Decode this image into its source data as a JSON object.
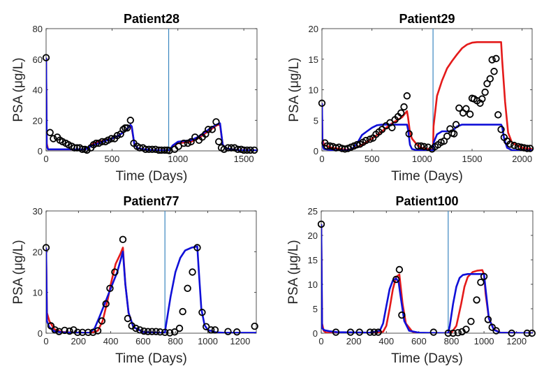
{
  "colors": {
    "model_red": "#e41a1a",
    "model_blue": "#1010d8",
    "marker": "#000000",
    "vline": "#3a86c0",
    "axis": "#262626"
  },
  "chart_data": [
    {
      "type": "line",
      "title": "Patient28",
      "xlabel": "Time (Days)",
      "ylabel": "PSA (μg/L)",
      "xlim": [
        0,
        1600
      ],
      "ylim": [
        0,
        80
      ],
      "xticks": [
        0,
        500,
        1000,
        1500
      ],
      "yticks": [
        0,
        20,
        40,
        60,
        80
      ],
      "vline_x": 930,
      "observed": {
        "x": [
          0,
          30,
          55,
          85,
          105,
          125,
          150,
          170,
          195,
          215,
          235,
          255,
          275,
          295,
          310,
          340,
          360,
          380,
          400,
          425,
          450,
          470,
          495,
          520,
          540,
          565,
          585,
          600,
          615,
          640,
          665,
          690,
          710,
          735,
          755,
          780,
          805,
          830,
          855,
          875,
          900,
          920,
          935,
          975,
          1005,
          1045,
          1075,
          1100,
          1130,
          1160,
          1185,
          1210,
          1230,
          1260,
          1290,
          1310,
          1330,
          1350,
          1380,
          1405,
          1430,
          1455,
          1480,
          1500,
          1525,
          1550,
          1580
        ],
        "y": [
          61,
          12,
          8,
          9,
          7,
          6,
          5,
          4,
          3,
          2,
          2,
          2,
          1,
          1,
          0.5,
          2,
          4,
          5,
          5,
          6,
          6,
          7,
          8,
          8,
          10,
          11,
          14,
          15,
          15,
          20,
          5,
          3,
          2,
          2,
          1,
          1,
          1,
          1,
          0.5,
          0.5,
          0.5,
          0.5,
          0.2,
          1,
          3,
          5,
          5,
          6,
          9,
          7,
          9,
          11,
          14,
          14,
          19,
          6,
          2,
          1,
          2,
          2,
          2,
          1,
          1,
          0.5,
          0.5,
          0.5,
          0.5
        ]
      },
      "series": [
        {
          "name": "model-red",
          "x": [
            0,
            5,
            15,
            300,
            330,
            360,
            400,
            450,
            500,
            550,
            600,
            640,
            650,
            670,
            700,
            800,
            930,
            935,
            960,
            1000,
            1050,
            1100,
            1150,
            1200,
            1250,
            1300,
            1320,
            1340,
            1370,
            1450,
            1600
          ],
          "y": [
            61,
            5,
            1,
            1,
            3,
            5,
            6,
            7,
            8,
            10,
            13,
            17,
            15,
            4,
            1.5,
            0.5,
            0.3,
            0.3,
            3,
            5,
            5.5,
            6,
            8,
            11,
            14,
            17,
            17,
            4,
            1.5,
            0.5,
            0.3
          ]
        },
        {
          "name": "model-blue",
          "x": [
            0,
            5,
            15,
            300,
            330,
            360,
            400,
            450,
            500,
            550,
            600,
            640,
            650,
            670,
            700,
            800,
            930,
            935,
            960,
            1000,
            1050,
            1100,
            1150,
            1200,
            1250,
            1300,
            1320,
            1340,
            1370,
            1450,
            1600
          ],
          "y": [
            61,
            3,
            1,
            1,
            2.5,
            4,
            5,
            6.5,
            8,
            10,
            13,
            17,
            16,
            4,
            1.5,
            0.5,
            0.3,
            0.3,
            3.5,
            6,
            6.5,
            7,
            9,
            12,
            15,
            17.5,
            18,
            4,
            1.5,
            0.5,
            0.3
          ]
        }
      ]
    },
    {
      "type": "line",
      "title": "Patient29",
      "xlabel": "Time (Days)",
      "ylabel": "PSA (μg/L)",
      "xlim": [
        0,
        2100
      ],
      "ylim": [
        0,
        20
      ],
      "xticks": [
        0,
        500,
        1000,
        1500,
        2000
      ],
      "yticks": [
        0,
        5,
        10,
        15,
        20
      ],
      "vline_x": 1110,
      "observed": {
        "x": [
          0,
          30,
          50,
          80,
          110,
          140,
          170,
          200,
          230,
          260,
          290,
          320,
          350,
          380,
          410,
          440,
          480,
          510,
          540,
          570,
          600,
          640,
          680,
          700,
          730,
          760,
          790,
          820,
          850,
          870,
          960,
          990,
          1020,
          1060,
          1100,
          1130,
          1160,
          1190,
          1220,
          1250,
          1280,
          1300,
          1320,
          1340,
          1370,
          1410,
          1440,
          1480,
          1500,
          1520,
          1550,
          1580,
          1600,
          1630,
          1650,
          1680,
          1700,
          1720,
          1740,
          1760,
          1790,
          1820,
          1850,
          1880,
          1920,
          1960,
          1990,
          2020,
          2050,
          2080
        ],
        "y": [
          7.8,
          1.3,
          0.8,
          0.8,
          0.7,
          0.5,
          0.6,
          0.4,
          0.3,
          0.4,
          0.6,
          0.8,
          1.0,
          1.1,
          1.4,
          1.7,
          1.9,
          2.1,
          2.7,
          3.1,
          3.5,
          4.1,
          4.6,
          3.8,
          5.1,
          5.6,
          6.2,
          7.2,
          9.0,
          2.8,
          0.8,
          0.8,
          0.7,
          0.6,
          0.3,
          0.7,
          1.0,
          1.4,
          1.6,
          2.4,
          3.6,
          2.9,
          2.8,
          4.3,
          7.0,
          6.2,
          6.9,
          6.0,
          8.6,
          8.5,
          8.2,
          7.8,
          8.5,
          9.6,
          11.0,
          11.8,
          14.9,
          13.0,
          15.1,
          5.9,
          3.5,
          2.2,
          1.6,
          1.1,
          0.9,
          0.7,
          0.6,
          0.5,
          0.4,
          0.4
        ]
      },
      "series": [
        {
          "name": "model-red",
          "x": [
            0,
            5,
            20,
            100,
            250,
            300,
            350,
            400,
            450,
            500,
            550,
            600,
            650,
            700,
            750,
            800,
            850,
            860,
            880,
            900,
            950,
            1000,
            1100,
            1110,
            1115,
            1150,
            1200,
            1250,
            1300,
            1350,
            1400,
            1450,
            1500,
            1550,
            1600,
            1700,
            1790,
            1800,
            1830,
            1860,
            1900,
            2000,
            2100
          ],
          "y": [
            7.8,
            2,
            1,
            0.5,
            0.2,
            0.3,
            0.6,
            1.0,
            1.5,
            2.0,
            2.6,
            3.2,
            3.9,
            4.5,
            5.0,
            5.5,
            6.5,
            5.5,
            3,
            2,
            1,
            0.5,
            0.2,
            0.2,
            4,
            9,
            11.5,
            13.5,
            14.7,
            15.8,
            16.8,
            17.4,
            17.7,
            17.8,
            17.8,
            17.8,
            17.8,
            15,
            8,
            3,
            1.3,
            0.5,
            0.3
          ]
        },
        {
          "name": "model-blue",
          "x": [
            0,
            5,
            20,
            100,
            250,
            300,
            350,
            400,
            450,
            500,
            550,
            600,
            650,
            700,
            750,
            800,
            850,
            860,
            880,
            900,
            950,
            1000,
            1100,
            1110,
            1120,
            1150,
            1200,
            1300,
            1350,
            1400,
            1500,
            1600,
            1700,
            1790,
            1800,
            1820,
            1850,
            1900,
            2000,
            2100
          ],
          "y": [
            7.8,
            1,
            0.3,
            0.1,
            0.1,
            0.3,
            1.2,
            2.6,
            3.2,
            3.8,
            4.2,
            4.3,
            4.3,
            4.3,
            4.3,
            4.3,
            4.3,
            3.5,
            1,
            0.3,
            0.1,
            0.1,
            0.1,
            0.1,
            1.5,
            2.7,
            3.2,
            3.2,
            4.0,
            4.3,
            4.3,
            4.3,
            4.3,
            4.3,
            4.0,
            2,
            0.5,
            0.1,
            0.1,
            0.1
          ]
        }
      ]
    },
    {
      "type": "line",
      "title": "Patient77",
      "xlabel": "Time (Days)",
      "ylabel": "PSA (μg/L)",
      "xlim": [
        0,
        1300
      ],
      "ylim": [
        0,
        30
      ],
      "xticks": [
        0,
        200,
        400,
        600,
        800,
        1000,
        1200
      ],
      "yticks": [
        0,
        10,
        20,
        30
      ],
      "vline_x": 735,
      "observed": {
        "x": [
          0,
          30,
          55,
          80,
          115,
          145,
          170,
          195,
          225,
          260,
          290,
          320,
          345,
          370,
          395,
          425,
          475,
          505,
          530,
          555,
          580,
          605,
          630,
          655,
          680,
          705,
          735,
          765,
          795,
          825,
          845,
          875,
          905,
          935,
          965,
          990,
          1020,
          1045,
          1125,
          1180,
          1290
        ],
        "y": [
          21,
          1.8,
          0.8,
          0.4,
          0.7,
          0.5,
          0.8,
          0.2,
          0.2,
          0.2,
          0.2,
          0.6,
          3.0,
          7.2,
          11,
          15,
          23,
          3.6,
          1.8,
          1.2,
          0.8,
          0.5,
          0.4,
          0.4,
          0.4,
          0.3,
          0.2,
          0.1,
          0.3,
          1.2,
          5.3,
          11,
          15,
          21,
          5.1,
          1.6,
          0.8,
          0.8,
          0.4,
          0.3,
          1.7
        ]
      },
      "series": [
        {
          "name": "model-red",
          "x": [
            0,
            5,
            20,
            50,
            100,
            200,
            280,
            320,
            350,
            380,
            400,
            430,
            460,
            475,
            490,
            510,
            540,
            600,
            700,
            735
          ],
          "y": [
            21,
            5,
            3,
            1,
            0.3,
            0.1,
            0.1,
            0.6,
            3,
            8,
            12,
            17,
            19.5,
            21,
            12,
            5,
            1.5,
            0.3,
            0.1,
            0.1
          ]
        },
        {
          "name": "model-blue",
          "x": [
            0,
            5,
            20,
            50,
            100,
            200,
            270,
            300,
            330,
            360,
            400,
            440,
            475,
            490,
            510,
            540,
            600,
            700,
            735,
            740,
            770,
            800,
            830,
            860,
            900,
            935,
            945,
            960,
            980,
            1000,
            1050,
            1100,
            1300
          ],
          "y": [
            21,
            3,
            1.5,
            0.5,
            0.2,
            0.1,
            0.1,
            1.2,
            4,
            7,
            11,
            15,
            20,
            12,
            5,
            1.5,
            0.3,
            0.1,
            0.1,
            1.5,
            9,
            15,
            18.5,
            20.3,
            21,
            21.3,
            15,
            6,
            2,
            0.8,
            0.2,
            0.1,
            0.1
          ]
        }
      ]
    },
    {
      "type": "line",
      "title": "Patient100",
      "xlabel": "Time (Days)",
      "ylabel": "PSA (μg/L)",
      "xlim": [
        0,
        1300
      ],
      "ylim": [
        0,
        25
      ],
      "xticks": [
        0,
        200,
        400,
        600,
        800,
        1000,
        1200
      ],
      "yticks": [
        0,
        5,
        10,
        15,
        20,
        25
      ],
      "vline_x": 780,
      "observed": {
        "x": [
          0,
          90,
          180,
          235,
          300,
          325,
          350,
          460,
          480,
          495,
          690,
          780,
          810,
          840,
          865,
          890,
          920,
          955,
          980,
          1000,
          1025,
          1050,
          1075,
          1170,
          1265,
          1295
        ],
        "y": [
          22.3,
          0.2,
          0.2,
          0.2,
          0.2,
          0.2,
          0.2,
          11,
          13,
          3.7,
          0.2,
          0,
          0,
          0.1,
          0.3,
          0.8,
          2.4,
          6.8,
          10.4,
          11.6,
          2.8,
          1.2,
          0.5,
          0,
          0,
          0
        ]
      },
      "series": [
        {
          "name": "model-red",
          "x": [
            0,
            5,
            15,
            30,
            100,
            300,
            380,
            400,
            420,
            440,
            460,
            480,
            490,
            500,
            520,
            560,
            600,
            780,
            800,
            830,
            860,
            880,
            900,
            930,
            960,
            990,
            1000,
            1010,
            1030,
            1060,
            1100,
            1300
          ],
          "y": [
            22.3,
            2,
            0.5,
            0.1,
            0,
            0,
            0.3,
            1.5,
            5,
            9,
            11.5,
            12,
            9,
            6,
            2,
            0.3,
            0,
            0,
            0.1,
            1.5,
            6,
            9.5,
            11.5,
            12.5,
            12.8,
            12.9,
            12,
            8,
            3,
            0.8,
            0.1,
            0
          ]
        },
        {
          "name": "model-blue",
          "x": [
            0,
            5,
            20,
            50,
            100,
            300,
            360,
            380,
            400,
            420,
            440,
            460,
            475,
            490,
            510,
            540,
            600,
            780,
            790,
            810,
            830,
            850,
            870,
            900,
            950,
            1000,
            1010,
            1030,
            1060,
            1100,
            1300
          ],
          "y": [
            22.3,
            1,
            0.6,
            0.4,
            0.2,
            0.1,
            0.5,
            2,
            5.5,
            9,
            10.8,
            11.2,
            10.5,
            7,
            2.5,
            0.5,
            0.1,
            0,
            1.5,
            6,
            9.5,
            11.3,
            11.9,
            12.1,
            12.1,
            12.1,
            9,
            3,
            0.7,
            0.1,
            0
          ]
        }
      ]
    }
  ]
}
